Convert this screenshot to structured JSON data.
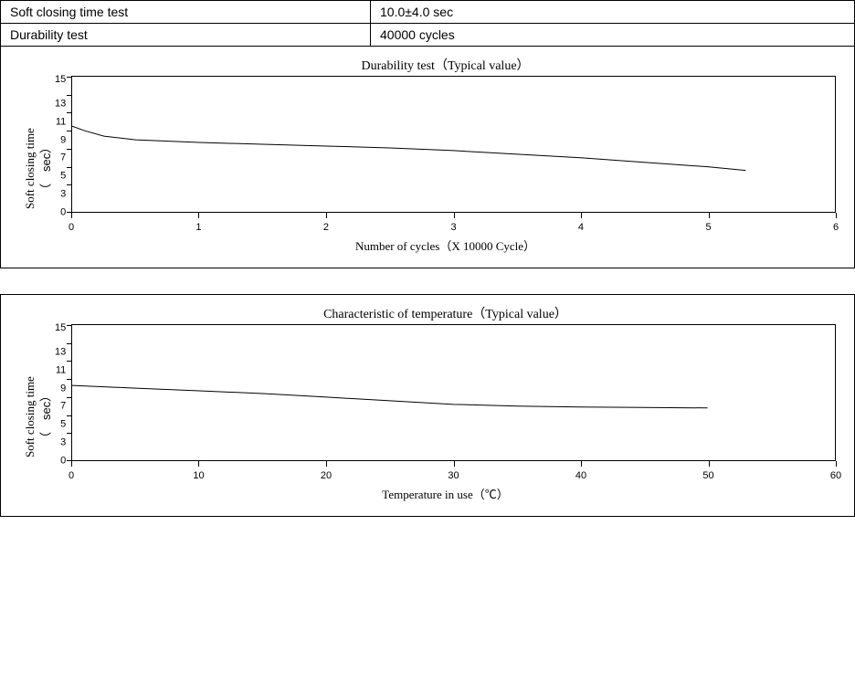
{
  "spec_table": {
    "rows": [
      {
        "label": "Soft closing time test",
        "value": "10.0±4.0 sec"
      },
      {
        "label": "Durability test",
        "value": "40000 cycles"
      }
    ]
  },
  "chart1": {
    "type": "line",
    "title": "Durability test（Typical value）",
    "ylabel_main": "Soft closing time",
    "ylabel_unit": "（　sec）",
    "xlabel": "Number of cycles（X 10000 Cycle）",
    "xlim": [
      0,
      6
    ],
    "ylim": [
      0,
      15
    ],
    "yticks": [
      15,
      13,
      11,
      9,
      7,
      5,
      3,
      0
    ],
    "xticks": [
      0,
      1,
      2,
      3,
      4,
      5,
      6
    ],
    "line_color": "#000000",
    "line_width": 1,
    "border_color": "#000000",
    "background_color": "#ffffff",
    "data": [
      {
        "x": 0.0,
        "y": 9.5
      },
      {
        "x": 0.1,
        "y": 9.0
      },
      {
        "x": 0.25,
        "y": 8.4
      },
      {
        "x": 0.5,
        "y": 8.0
      },
      {
        "x": 1.0,
        "y": 7.7
      },
      {
        "x": 1.5,
        "y": 7.5
      },
      {
        "x": 2.0,
        "y": 7.3
      },
      {
        "x": 2.5,
        "y": 7.1
      },
      {
        "x": 3.0,
        "y": 6.8
      },
      {
        "x": 3.5,
        "y": 6.4
      },
      {
        "x": 4.0,
        "y": 6.0
      },
      {
        "x": 4.5,
        "y": 5.5
      },
      {
        "x": 5.0,
        "y": 5.0
      },
      {
        "x": 5.3,
        "y": 4.6
      }
    ]
  },
  "chart2": {
    "type": "line",
    "title": "Characteristic of temperature（Typical value）",
    "ylabel_main": "Soft closing time",
    "ylabel_unit": "（　sec）",
    "xlabel": "Temperature in use（℃）",
    "xlim": [
      0,
      60
    ],
    "ylim": [
      0,
      15
    ],
    "yticks": [
      15,
      13,
      11,
      9,
      7,
      5,
      3,
      0
    ],
    "xticks": [
      0,
      10,
      20,
      30,
      40,
      50,
      60
    ],
    "line_color": "#000000",
    "line_width": 1,
    "border_color": "#000000",
    "background_color": "#ffffff",
    "data": [
      {
        "x": 0,
        "y": 8.3
      },
      {
        "x": 5,
        "y": 8.0
      },
      {
        "x": 10,
        "y": 7.7
      },
      {
        "x": 15,
        "y": 7.4
      },
      {
        "x": 20,
        "y": 7.0
      },
      {
        "x": 25,
        "y": 6.6
      },
      {
        "x": 30,
        "y": 6.2
      },
      {
        "x": 35,
        "y": 6.0
      },
      {
        "x": 40,
        "y": 5.9
      },
      {
        "x": 45,
        "y": 5.85
      },
      {
        "x": 50,
        "y": 5.8
      }
    ]
  }
}
